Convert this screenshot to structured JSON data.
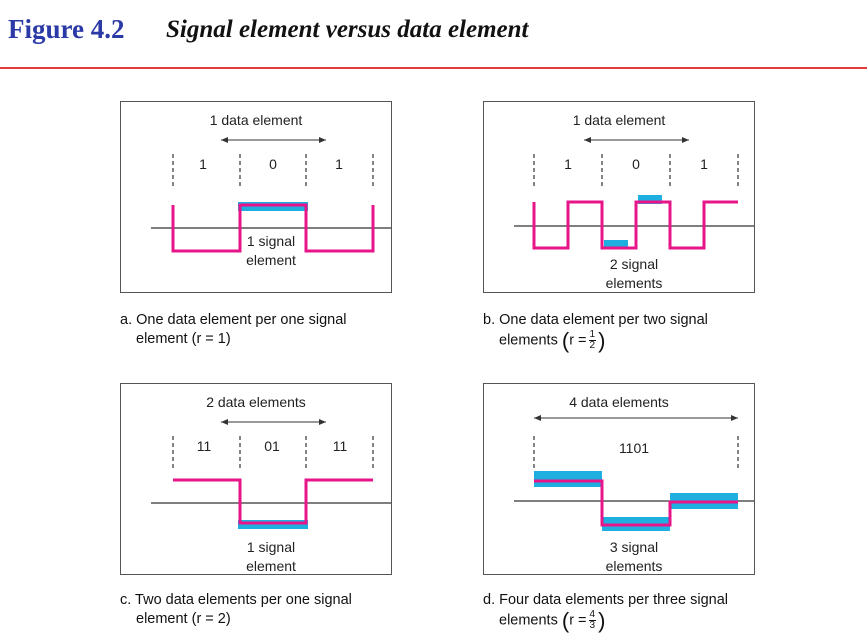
{
  "figure": {
    "number": "Figure 4.2",
    "title": "Signal element versus data element"
  },
  "colors": {
    "title_blue": "#2b3aa6",
    "rule_red": "#e23b3b",
    "signal_pink": "#e8148a",
    "data_cyan": "#1eaee0"
  },
  "panels": {
    "a": {
      "top_label": "1 data element",
      "bits": [
        "1",
        "0",
        "1"
      ],
      "signal_label_1": "1 signal",
      "signal_label_2": "element",
      "caption_line1": "a. One data element per one signal",
      "caption_line2": "element (r = 1)"
    },
    "b": {
      "top_label": "1 data element",
      "bits": [
        "1",
        "0",
        "1"
      ],
      "signal_label_1": "2 signal",
      "signal_label_2": "elements",
      "caption_line1": "b. One data element per two signal",
      "caption_line2_prefix": "elements",
      "ratio_var": "r =",
      "ratio_num": "1",
      "ratio_den": "2"
    },
    "c": {
      "top_label": "2 data elements",
      "bits": [
        "11",
        "01",
        "11"
      ],
      "signal_label_1": "1 signal",
      "signal_label_2": "element",
      "caption_line1": "c. Two data elements per one signal",
      "caption_line2": "element (r = 2)"
    },
    "d": {
      "top_label": "4 data elements",
      "bits": [
        "1101"
      ],
      "signal_label_1": "3 signal",
      "signal_label_2": "elements",
      "caption_line1": "d. Four data elements per three signal",
      "caption_line2_prefix": "elements",
      "ratio_var": "r =",
      "ratio_num": "4",
      "ratio_den": "3"
    }
  }
}
